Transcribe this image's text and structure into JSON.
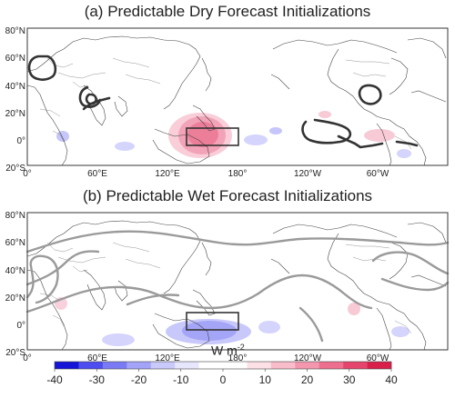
{
  "panels": [
    {
      "title": "(a) Predictable Dry Forecast Initializations",
      "contour_style": "dark",
      "y_labels": [
        "80°N",
        "60°N",
        "40°N",
        "20°N",
        "0°",
        "20°S"
      ],
      "x_labels": [
        "0°",
        "60°E",
        "120°E",
        "180°",
        "120°W",
        "60°W"
      ]
    },
    {
      "title": "(b) Predictable Wet Forecast Initializations",
      "contour_style": "grey",
      "y_labels": [
        "80°N",
        "60°N",
        "40°N",
        "20°N",
        "0°",
        "20°S"
      ],
      "x_labels": [
        "0°",
        "60°E",
        "120°E",
        "180°",
        "120°W",
        "60°W"
      ]
    }
  ],
  "colorbar": {
    "units_text": "W m",
    "units_exponent": "-2",
    "tick_labels": [
      "-40",
      "-30",
      "-20",
      "-10",
      "0",
      "10",
      "20",
      "30",
      "40"
    ],
    "colors": [
      "#1515d8",
      "#4d4df0",
      "#7a7af5",
      "#a3a3f8",
      "#c9c9fb",
      "#e6e6fd",
      "#ffffff",
      "#ffffff",
      "#fde0e6",
      "#f9bccb",
      "#f397ae",
      "#ed6e8e",
      "#e5456d",
      "#d8204a"
    ]
  }
}
